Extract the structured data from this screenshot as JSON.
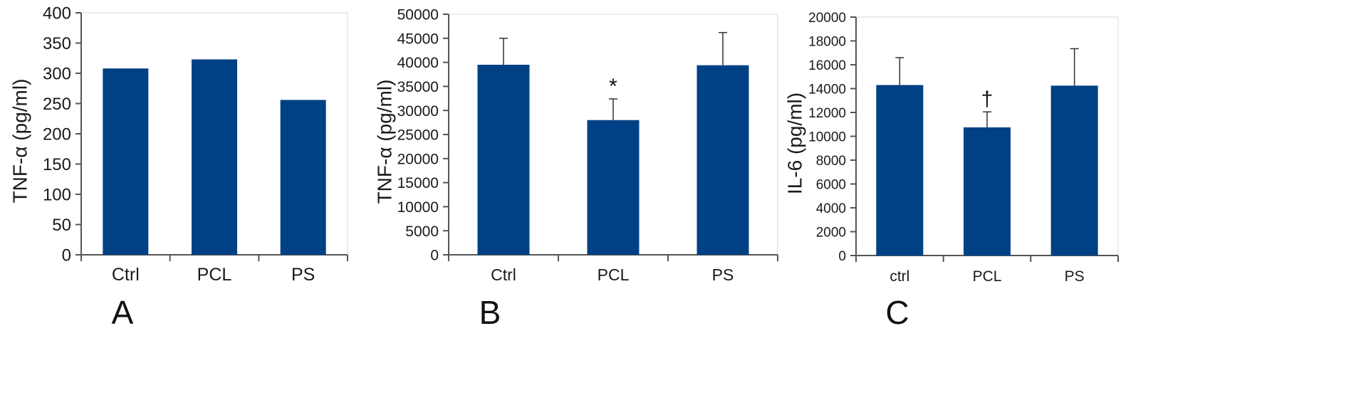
{
  "colors": {
    "bar": "#004185",
    "axis": "#555555",
    "text": "#1a1a1a"
  },
  "chart_data": [
    {
      "type": "bar",
      "panel_label": "A",
      "ylabel": "TNF-α (pg/ml)",
      "xlabel": "",
      "categories": [
        "Ctrl",
        "PCL",
        "PS"
      ],
      "values": [
        308,
        323,
        256
      ],
      "errors": null,
      "annotations": [
        "",
        "",
        ""
      ],
      "ylim": [
        0,
        400
      ],
      "yticks": [
        0,
        50,
        100,
        150,
        200,
        250,
        300,
        350,
        400
      ],
      "grid": false
    },
    {
      "type": "bar",
      "panel_label": "B",
      "ylabel": "TNF-α (pg/ml)",
      "xlabel": "",
      "categories": [
        "Ctrl",
        "PCL",
        "PS"
      ],
      "values": [
        39500,
        28000,
        39400
      ],
      "errors": [
        5500,
        4400,
        6800
      ],
      "annotations": [
        "",
        "*",
        ""
      ],
      "ylim": [
        0,
        50000
      ],
      "yticks": [
        0,
        5000,
        10000,
        15000,
        20000,
        25000,
        30000,
        35000,
        40000,
        45000,
        50000
      ],
      "grid": false
    },
    {
      "type": "bar",
      "panel_label": "C",
      "ylabel": "IL-6 (pg/ml)",
      "xlabel": "",
      "categories": [
        "ctrl",
        "PCL",
        "PS"
      ],
      "values": [
        14300,
        10750,
        14250
      ],
      "errors": [
        2300,
        1300,
        3100
      ],
      "annotations": [
        "",
        "†",
        ""
      ],
      "ylim": [
        0,
        20000
      ],
      "yticks": [
        0,
        2000,
        4000,
        6000,
        8000,
        10000,
        12000,
        14000,
        16000,
        18000,
        20000
      ],
      "grid": false
    }
  ]
}
